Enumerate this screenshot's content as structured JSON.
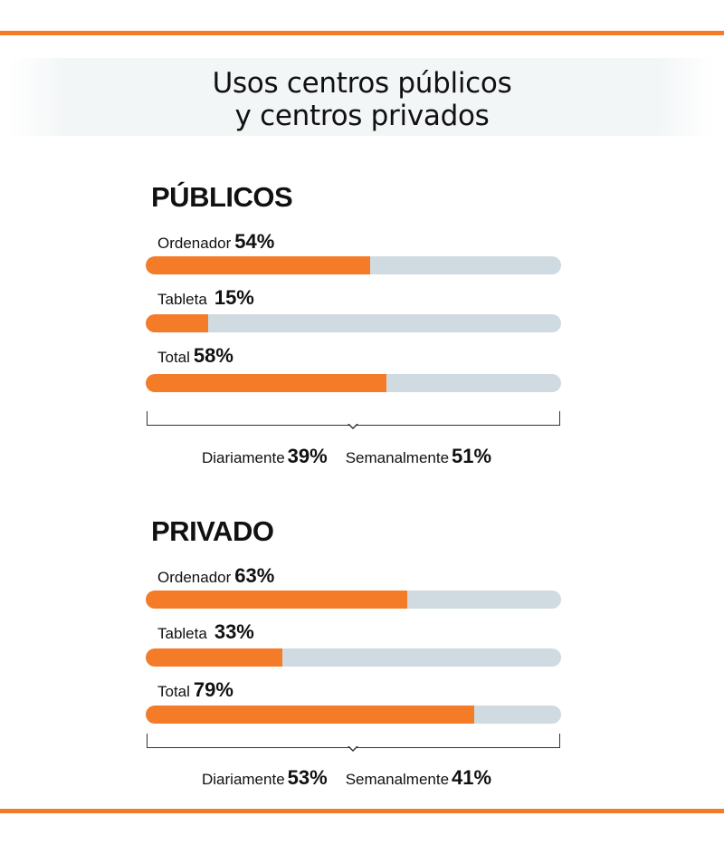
{
  "title_line1": "Usos centros públicos",
  "title_line2": "y centros privados",
  "colors": {
    "accent": "#f47b28",
    "track": "#cfdbe0",
    "text": "#111111"
  },
  "chart_data": {
    "type": "bar",
    "orientation": "horizontal",
    "title": "Usos centros públicos y centros privados",
    "xlim": [
      0,
      100
    ],
    "unit": "%",
    "groups": [
      {
        "name": "PÚBLICOS",
        "categories": [
          "Ordenador",
          "Tableta",
          "Total"
        ],
        "values": [
          54,
          15,
          58
        ],
        "value_labels": [
          "54%",
          "15%",
          "58%"
        ],
        "breakdown": [
          {
            "label": "Diariamente",
            "value": 39,
            "value_label": "39%"
          },
          {
            "label": "Semanalmente",
            "value": 51,
            "value_label": "51%"
          }
        ]
      },
      {
        "name": "PRIVADO",
        "categories": [
          "Ordenador",
          "Tableta",
          "Total"
        ],
        "values": [
          63,
          33,
          79
        ],
        "value_labels": [
          "63%",
          "33%",
          "79%"
        ],
        "breakdown": [
          {
            "label": "Diariamente",
            "value": 53,
            "value_label": "53%"
          },
          {
            "label": "Semanalmente",
            "value": 41,
            "value_label": "41%"
          }
        ]
      }
    ]
  }
}
